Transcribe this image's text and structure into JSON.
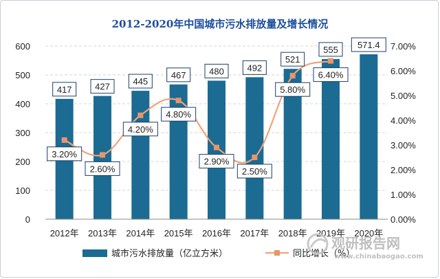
{
  "chart_data": {
    "type": "bar",
    "title": "2012-2020年中国城市污水排放量及增长情况",
    "categories": [
      "2012年",
      "2013年",
      "2014年",
      "2015年",
      "2016年",
      "2017年",
      "2018年",
      "2019年",
      "2020年"
    ],
    "series": [
      {
        "name": "城市污水排放量（亿立方米）",
        "type": "bar",
        "axis": "left",
        "color": "#1b6b93",
        "values": [
          417,
          427,
          445,
          467,
          480,
          492,
          521,
          555,
          571.4
        ],
        "labels": [
          "417",
          "427",
          "445",
          "467",
          "480",
          "492",
          "521",
          "555",
          "571.4"
        ]
      },
      {
        "name": "同比增长（%）",
        "type": "line",
        "axis": "right",
        "color": "#f0a37a",
        "marker_color": "#e8956a",
        "values": [
          3.2,
          2.6,
          4.2,
          4.8,
          2.9,
          2.5,
          5.8,
          6.4,
          null
        ],
        "labels": [
          "3.20%",
          "2.60%",
          "4.20%",
          "4.80%",
          "2.90%",
          "2.50%",
          "5.80%",
          "6.40%",
          ""
        ]
      }
    ],
    "y_left": {
      "range": [
        0,
        600
      ],
      "ticks": [
        "0",
        "100",
        "200",
        "300",
        "400",
        "500",
        "600"
      ]
    },
    "y_right": {
      "range": [
        0,
        7
      ],
      "ticks": [
        "0.00%",
        "1.00%",
        "2.00%",
        "3.00%",
        "4.00%",
        "5.00%",
        "6.00%",
        "7.00%"
      ]
    },
    "grid": "horizontal-dashed",
    "legend_position": "bottom"
  },
  "watermark": {
    "brand": "观研报告网",
    "url": "www.chinabaogao.com"
  }
}
